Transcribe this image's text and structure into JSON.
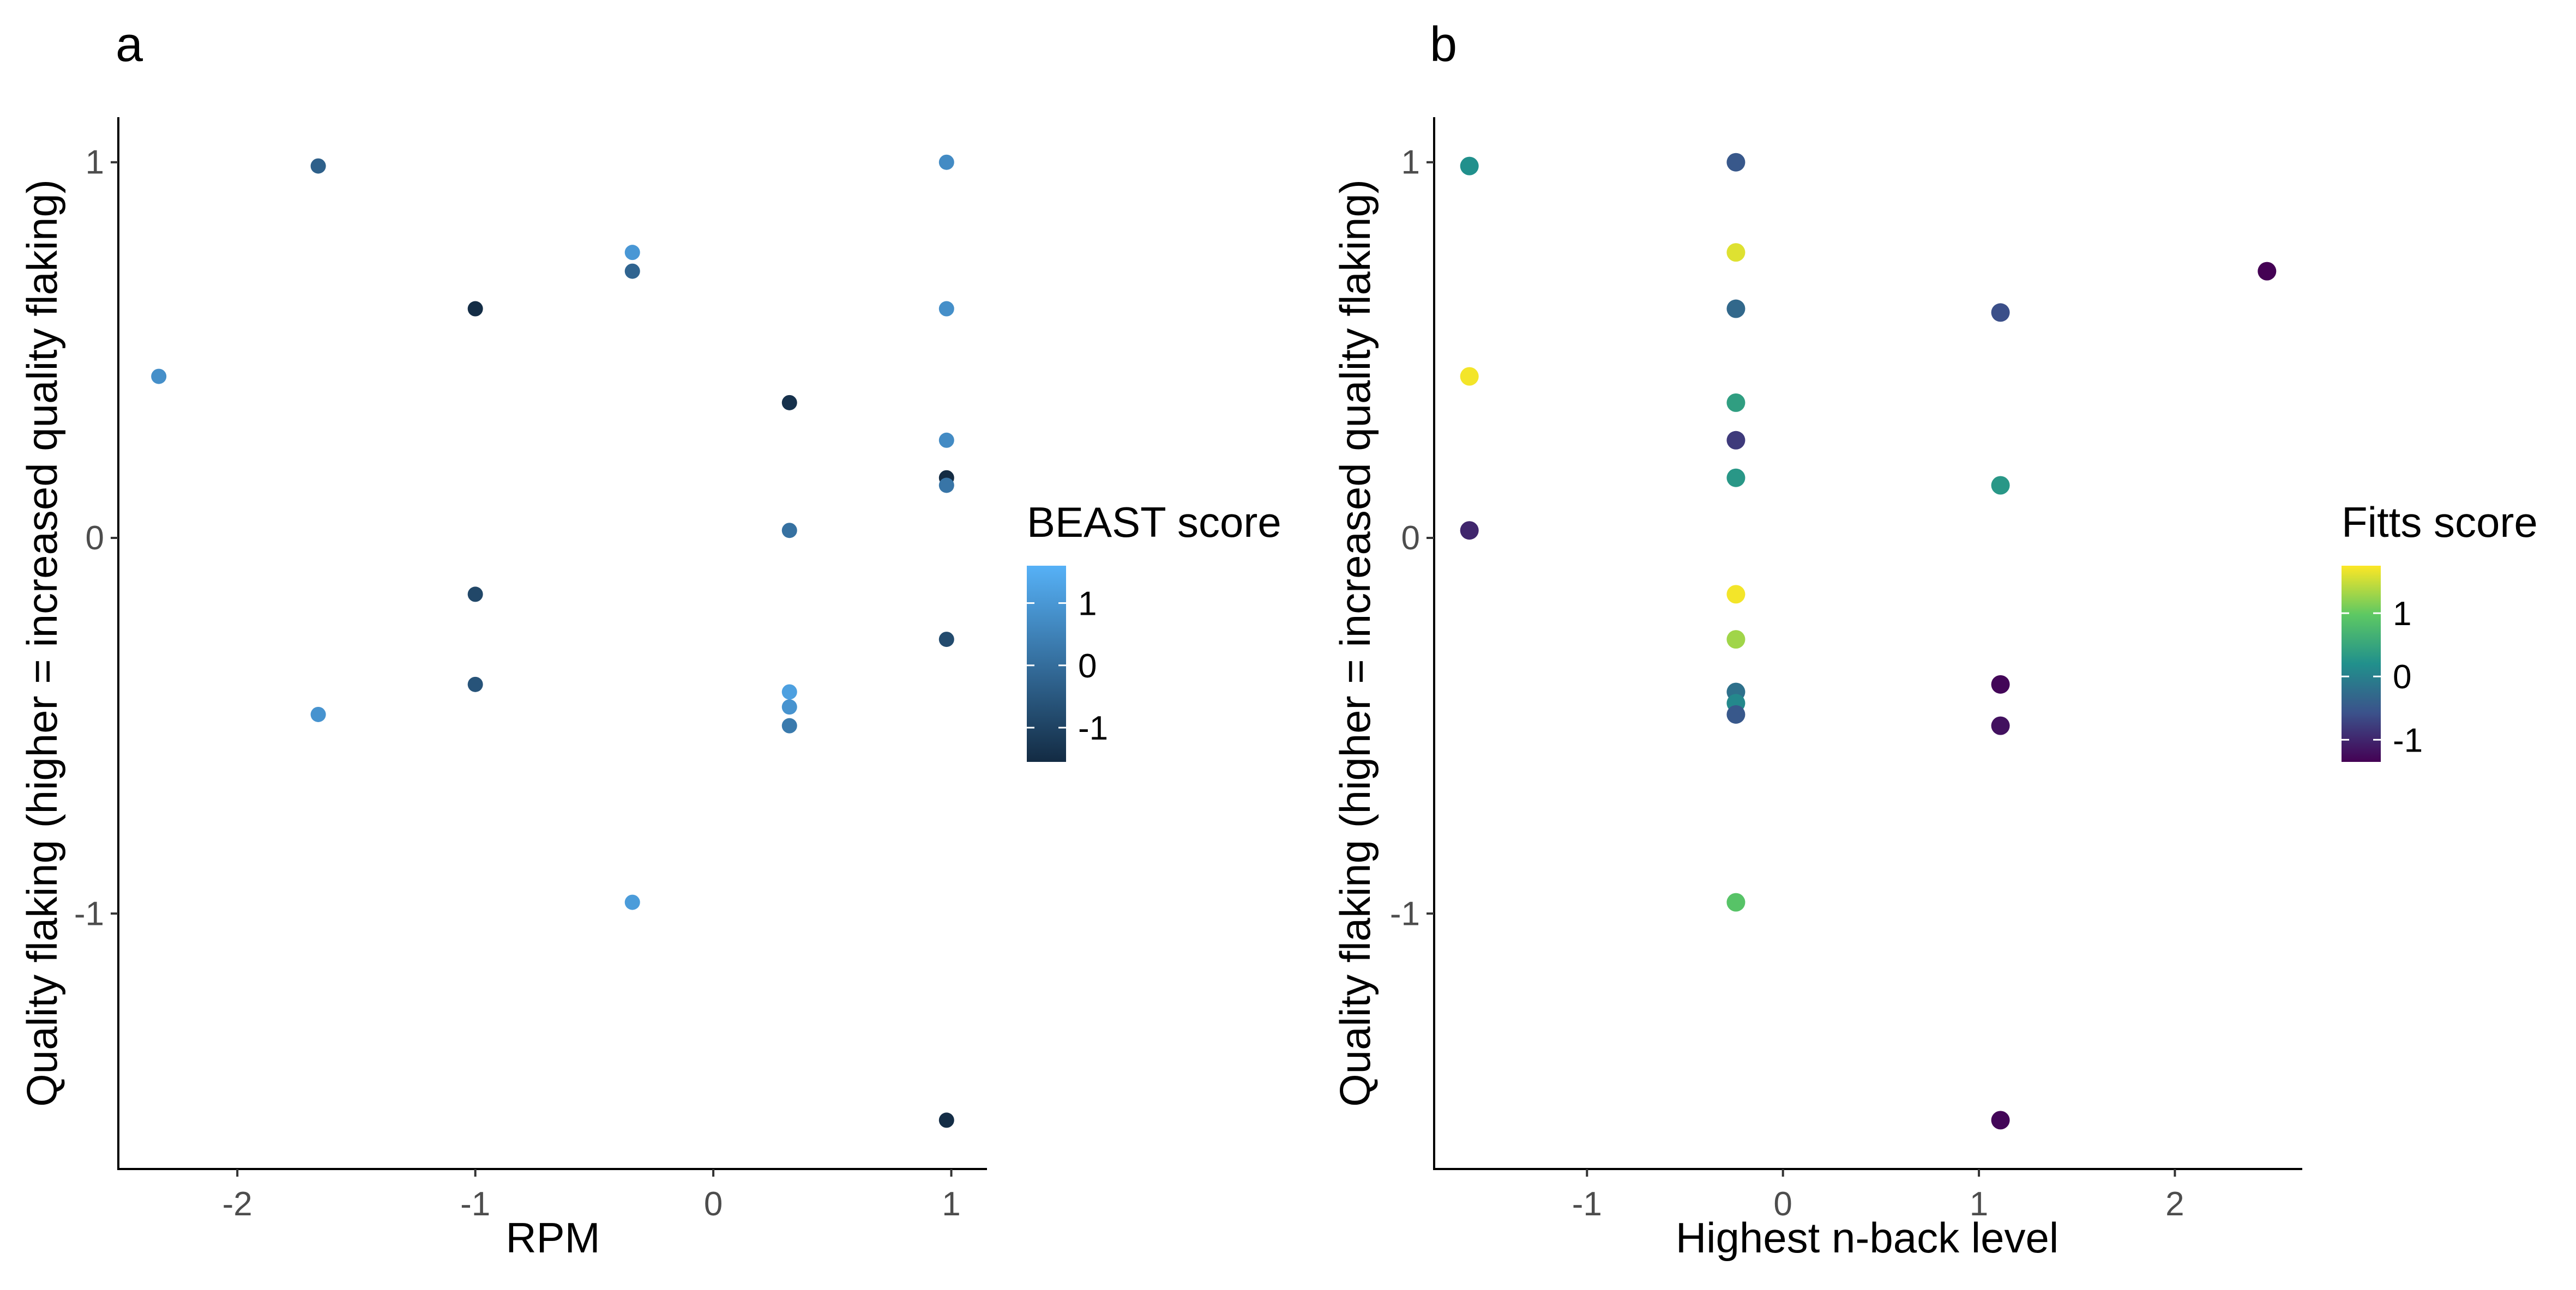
{
  "chart_data": [
    {
      "type": "scatter",
      "panel": "a",
      "xlabel": "RPM",
      "ylabel": "Quality flaking (higher = increased quality flaking)",
      "xlim": [
        -2.5,
        1.15
      ],
      "ylim": [
        -1.68,
        1.12
      ],
      "x_ticks": [
        -2,
        -1,
        0,
        1
      ],
      "x_tick_labels": [
        "-2",
        "-1",
        "0",
        "1"
      ],
      "y_ticks": [
        -1,
        0,
        1
      ],
      "y_tick_labels": [
        "-1",
        "0",
        "1"
      ],
      "grid": false,
      "color_scale": {
        "title": "BEAST score",
        "low_color": "#132B43",
        "high_color": "#56B1F7",
        "range": [
          -1.55,
          1.6
        ],
        "ticks": [
          -1,
          0,
          1
        ],
        "tick_labels": [
          "-1",
          "0",
          "1"
        ],
        "position": "right"
      },
      "points": [
        {
          "x": -2.33,
          "y": 0.43,
          "color_value": 0.8
        },
        {
          "x": -1.66,
          "y": 0.99,
          "color_value": -0.3
        },
        {
          "x": -1.66,
          "y": -0.47,
          "color_value": 0.9
        },
        {
          "x": -1.0,
          "y": 0.61,
          "color_value": -1.5
        },
        {
          "x": -1.0,
          "y": -0.15,
          "color_value": -0.9
        },
        {
          "x": -1.0,
          "y": -0.39,
          "color_value": -0.6
        },
        {
          "x": -0.34,
          "y": 0.76,
          "color_value": 1.0
        },
        {
          "x": -0.34,
          "y": 0.71,
          "color_value": -0.2
        },
        {
          "x": -0.34,
          "y": -0.97,
          "color_value": 1.1
        },
        {
          "x": 0.32,
          "y": 0.36,
          "color_value": -1.4
        },
        {
          "x": 0.32,
          "y": 0.02,
          "color_value": 0.1
        },
        {
          "x": 0.32,
          "y": -0.41,
          "color_value": 1.2
        },
        {
          "x": 0.32,
          "y": -0.45,
          "color_value": 0.9
        },
        {
          "x": 0.32,
          "y": -0.5,
          "color_value": 0.3
        },
        {
          "x": 0.98,
          "y": 1.0,
          "color_value": 0.7
        },
        {
          "x": 0.98,
          "y": 0.61,
          "color_value": 0.8
        },
        {
          "x": 0.98,
          "y": 0.26,
          "color_value": 0.7
        },
        {
          "x": 0.98,
          "y": 0.16,
          "color_value": -1.6
        },
        {
          "x": 0.98,
          "y": 0.14,
          "color_value": 0.2
        },
        {
          "x": 0.98,
          "y": -0.27,
          "color_value": -0.8
        },
        {
          "x": 0.98,
          "y": -1.55,
          "color_value": -1.5
        }
      ]
    },
    {
      "type": "scatter",
      "panel": "b",
      "xlabel": "Highest n-back level",
      "ylabel": "Quality flaking (higher = increased quality flaking)",
      "xlim": [
        -1.78,
        2.65
      ],
      "ylim": [
        -1.68,
        1.12
      ],
      "x_ticks": [
        -1,
        0,
        1,
        2
      ],
      "x_tick_labels": [
        "-1",
        "0",
        "1",
        "2"
      ],
      "y_ticks": [
        -1,
        0,
        1
      ],
      "y_tick_labels": [
        "-1",
        "0",
        "1"
      ],
      "grid": false,
      "color_scale": {
        "title": "Fitts score",
        "palette": "viridis",
        "stops": [
          "#440154",
          "#3B528B",
          "#21908C",
          "#5DC863",
          "#FDE725"
        ],
        "range": [
          -1.35,
          1.75
        ],
        "ticks": [
          -1,
          0,
          1
        ],
        "tick_labels": [
          "-1",
          "0",
          "1"
        ],
        "position": "right"
      },
      "points": [
        {
          "x": -1.6,
          "y": 0.99,
          "color_value": 0.2
        },
        {
          "x": -1.6,
          "y": 0.43,
          "color_value": 1.7
        },
        {
          "x": -1.6,
          "y": 0.02,
          "color_value": -1.0
        },
        {
          "x": -0.24,
          "y": 1.0,
          "color_value": -0.5
        },
        {
          "x": -0.24,
          "y": 0.76,
          "color_value": 1.6
        },
        {
          "x": -0.24,
          "y": 0.61,
          "color_value": -0.3
        },
        {
          "x": -0.24,
          "y": 0.36,
          "color_value": 0.4
        },
        {
          "x": -0.24,
          "y": 0.26,
          "color_value": -0.8
        },
        {
          "x": -0.24,
          "y": 0.16,
          "color_value": 0.3
        },
        {
          "x": -0.24,
          "y": -0.15,
          "color_value": 1.7
        },
        {
          "x": -0.24,
          "y": -0.27,
          "color_value": 1.3
        },
        {
          "x": -0.24,
          "y": -0.41,
          "color_value": -0.2
        },
        {
          "x": -0.24,
          "y": -0.44,
          "color_value": 0.1
        },
        {
          "x": -0.24,
          "y": -0.47,
          "color_value": -0.5
        },
        {
          "x": -0.24,
          "y": -0.97,
          "color_value": 0.9
        },
        {
          "x": 1.11,
          "y": 0.6,
          "color_value": -0.6
        },
        {
          "x": 1.11,
          "y": 0.14,
          "color_value": 0.3
        },
        {
          "x": 1.11,
          "y": -0.39,
          "color_value": -1.3
        },
        {
          "x": 1.11,
          "y": -0.5,
          "color_value": -1.2
        },
        {
          "x": 1.11,
          "y": -1.55,
          "color_value": -1.3
        },
        {
          "x": 2.47,
          "y": 0.71,
          "color_value": -1.35
        }
      ]
    }
  ]
}
